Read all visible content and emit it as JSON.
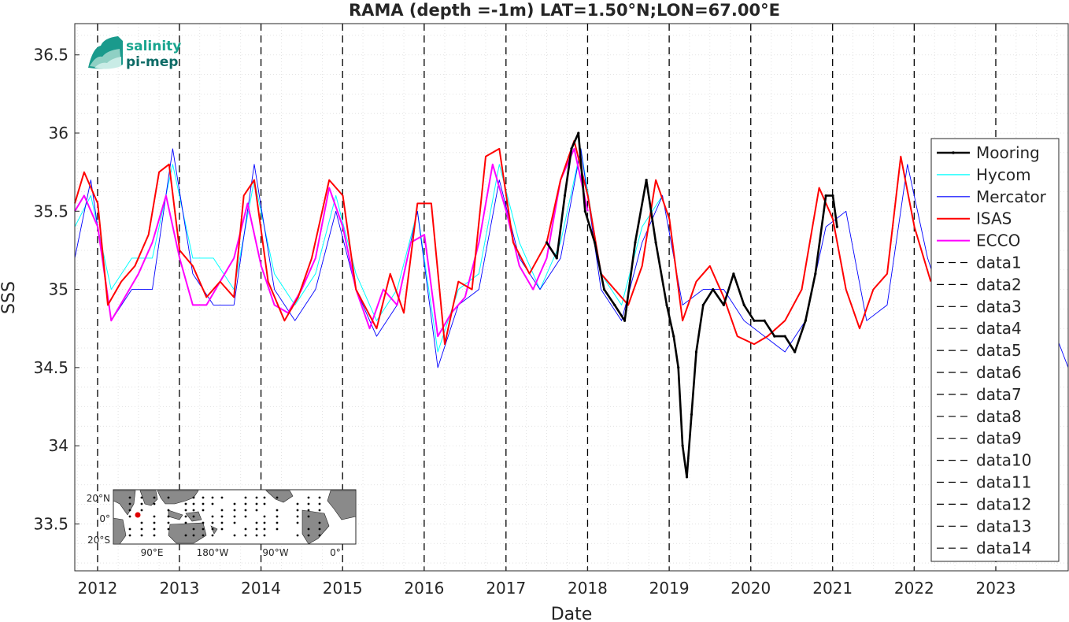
{
  "chart_data": {
    "type": "line",
    "title": "RAMA (depth =-1m) LAT=1.50°N;LON=67.00°E",
    "xlabel": "Date",
    "ylabel": "SSS",
    "xlim": [
      "2011-09-20",
      "2023-11-20"
    ],
    "ylim": [
      33.2,
      36.7
    ],
    "grid": true,
    "legend_position": "right",
    "x_ticks": [
      "2012",
      "2013",
      "2014",
      "2015",
      "2016",
      "2017",
      "2018",
      "2019",
      "2020",
      "2021",
      "2022",
      "2023"
    ],
    "y_ticks": [
      33.5,
      34,
      34.5,
      35,
      35.5,
      36,
      36.5
    ],
    "series": [
      {
        "name": "Mooring",
        "color": "#000000",
        "style": "solid-marker",
        "x": [
          "2017-07-01",
          "2017-08-15",
          "2017-09-20",
          "2017-10-20",
          "2017-11-20",
          "2017-12-20",
          "2018-02-01",
          "2018-03-15",
          "2018-05-01",
          "2018-06-15",
          "2018-08-01",
          "2018-09-20",
          "2018-11-01",
          "2018-12-20",
          "2019-01-20",
          "2019-02-10",
          "2019-03-01",
          "2019-03-20",
          "2019-04-10",
          "2019-05-01",
          "2019-06-01",
          "2019-07-15",
          "2019-09-01",
          "2019-10-15",
          "2019-12-01",
          "2020-01-15",
          "2020-03-01",
          "2020-04-15",
          "2020-06-01",
          "2020-07-15",
          "2020-09-01",
          "2020-10-15",
          "2020-12-01",
          "2021-01-01",
          "2021-01-20"
        ],
        "y": [
          35.3,
          35.2,
          35.6,
          35.9,
          36.0,
          35.5,
          35.3,
          35.0,
          34.9,
          34.8,
          35.3,
          35.7,
          35.3,
          34.9,
          34.7,
          34.5,
          34.0,
          33.8,
          34.2,
          34.6,
          34.9,
          35.0,
          34.9,
          35.1,
          34.9,
          34.8,
          34.8,
          34.7,
          34.7,
          34.6,
          34.8,
          35.1,
          35.6,
          35.6,
          35.4
        ]
      },
      {
        "name": "Hycom",
        "color": "#00ffff",
        "style": "solid",
        "x": [
          "2011-09-20",
          "2011-12-01",
          "2012-03-01",
          "2012-06-01",
          "2012-09-01",
          "2012-12-01",
          "2013-03-01",
          "2013-06-01",
          "2013-09-01",
          "2013-12-01",
          "2014-03-01",
          "2014-06-01",
          "2014-09-01",
          "2014-12-01",
          "2015-03-01",
          "2015-06-01",
          "2015-09-01",
          "2015-12-01",
          "2016-03-01",
          "2016-06-01",
          "2016-09-01",
          "2016-12-01",
          "2017-03-01",
          "2017-06-01",
          "2017-09-01",
          "2017-12-01",
          "2018-03-01",
          "2018-06-01",
          "2018-09-01",
          "2018-12-01"
        ],
        "y": [
          35.4,
          35.6,
          35.0,
          35.2,
          35.2,
          35.8,
          35.2,
          35.2,
          35.0,
          35.7,
          35.1,
          34.9,
          35.1,
          35.6,
          35.1,
          34.8,
          35.0,
          35.5,
          34.6,
          35.0,
          35.1,
          35.8,
          35.3,
          35.0,
          35.3,
          35.9,
          35.1,
          34.9,
          35.4,
          35.6
        ]
      },
      {
        "name": "Mercator",
        "color": "#0000ff",
        "style": "solid",
        "x": [
          "2011-09-20",
          "2011-12-01",
          "2012-03-01",
          "2012-06-01",
          "2012-09-01",
          "2012-12-01",
          "2013-03-01",
          "2013-06-01",
          "2013-09-01",
          "2013-12-01",
          "2014-03-01",
          "2014-06-01",
          "2014-09-01",
          "2014-12-01",
          "2015-03-01",
          "2015-06-01",
          "2015-09-01",
          "2015-12-01",
          "2016-03-01",
          "2016-06-01",
          "2016-09-01",
          "2016-12-01",
          "2017-03-01",
          "2017-06-01",
          "2017-09-01",
          "2017-12-01",
          "2018-03-01",
          "2018-06-01",
          "2018-09-01",
          "2018-12-01",
          "2019-03-01",
          "2019-06-01",
          "2019-09-01",
          "2019-12-01",
          "2020-03-01",
          "2020-06-01",
          "2020-09-01",
          "2020-12-01",
          "2021-03-01",
          "2021-06-01",
          "2021-09-01",
          "2021-12-01",
          "2022-03-01",
          "2022-06-01",
          "2022-09-01",
          "2022-12-01",
          "2023-03-01",
          "2023-06-01",
          "2023-09-01",
          "2023-11-20"
        ],
        "y": [
          35.2,
          35.7,
          34.8,
          35.0,
          35.0,
          35.9,
          35.1,
          34.9,
          34.9,
          35.8,
          35.0,
          34.8,
          35.0,
          35.5,
          35.0,
          34.7,
          34.9,
          35.5,
          34.5,
          34.9,
          35.0,
          35.7,
          35.2,
          35.0,
          35.2,
          35.9,
          35.0,
          34.8,
          35.3,
          35.6,
          34.9,
          35.0,
          35.0,
          34.8,
          34.7,
          34.6,
          34.8,
          35.4,
          35.5,
          34.8,
          34.9,
          35.8,
          35.2,
          34.8,
          34.9,
          35.7,
          35.9,
          35.0,
          34.8,
          34.5
        ]
      },
      {
        "name": "ISAS",
        "color": "#ff0000",
        "style": "solid",
        "x": [
          "2011-09-20",
          "2011-11-01",
          "2012-01-01",
          "2012-02-15",
          "2012-04-15",
          "2012-06-15",
          "2012-08-15",
          "2012-10-01",
          "2012-11-15",
          "2013-01-01",
          "2013-03-01",
          "2013-05-01",
          "2013-07-01",
          "2013-09-01",
          "2013-10-15",
          "2013-12-01",
          "2014-02-01",
          "2014-04-15",
          "2014-06-15",
          "2014-08-15",
          "2014-11-01",
          "2015-01-01",
          "2015-03-01",
          "2015-06-01",
          "2015-08-01",
          "2015-10-01",
          "2015-12-01",
          "2016-02-01",
          "2016-04-01",
          "2016-06-01",
          "2016-08-01",
          "2016-10-01",
          "2016-12-01",
          "2017-02-01",
          "2017-04-15",
          "2017-07-01",
          "2017-09-01",
          "2017-11-01",
          "2018-01-01",
          "2018-03-01",
          "2018-05-01",
          "2018-07-01",
          "2018-09-01",
          "2018-11-01",
          "2019-01-01",
          "2019-03-01",
          "2019-05-01",
          "2019-07-01",
          "2019-09-01",
          "2019-11-01",
          "2020-01-15",
          "2020-03-15",
          "2020-06-01",
          "2020-08-15",
          "2020-11-01",
          "2021-01-01",
          "2021-03-01",
          "2021-05-01",
          "2021-07-01",
          "2021-09-01",
          "2021-11-01",
          "2022-01-01",
          "2022-03-15"
        ],
        "y": [
          35.55,
          35.75,
          35.55,
          34.9,
          35.05,
          35.15,
          35.35,
          35.75,
          35.8,
          35.25,
          35.15,
          34.95,
          35.05,
          34.95,
          35.6,
          35.7,
          35.05,
          34.8,
          34.95,
          35.2,
          35.7,
          35.6,
          35.0,
          34.75,
          35.1,
          34.85,
          35.55,
          35.55,
          34.65,
          35.05,
          35.0,
          35.85,
          35.9,
          35.3,
          35.1,
          35.3,
          35.7,
          35.95,
          35.6,
          35.1,
          35.0,
          34.9,
          35.15,
          35.7,
          35.45,
          34.8,
          35.05,
          35.15,
          34.95,
          34.7,
          34.65,
          34.7,
          34.8,
          35.0,
          35.65,
          35.45,
          35.0,
          34.75,
          35.0,
          35.1,
          35.85,
          35.4,
          35.05
        ]
      },
      {
        "name": "ECCO",
        "color": "#ff00ff",
        "style": "solid",
        "x": [
          "2011-09-20",
          "2011-11-01",
          "2012-01-01",
          "2012-03-01",
          "2012-05-01",
          "2012-07-01",
          "2012-09-01",
          "2012-11-01",
          "2013-01-01",
          "2013-03-01",
          "2013-05-01",
          "2013-07-01",
          "2013-09-01",
          "2013-11-01",
          "2014-01-01",
          "2014-03-01",
          "2014-05-01",
          "2014-07-01",
          "2014-09-01",
          "2014-11-01",
          "2015-01-01",
          "2015-03-01",
          "2015-05-01",
          "2015-07-01",
          "2015-09-01",
          "2015-11-01",
          "2016-01-01",
          "2016-03-01",
          "2016-05-01",
          "2016-07-01",
          "2016-09-01",
          "2016-11-01",
          "2017-01-01",
          "2017-03-01",
          "2017-05-01",
          "2017-07-01",
          "2017-09-01",
          "2017-11-01",
          "2018-01-01"
        ],
        "y": [
          35.5,
          35.6,
          35.4,
          34.8,
          34.95,
          35.1,
          35.3,
          35.6,
          35.2,
          34.9,
          34.9,
          35.05,
          35.2,
          35.55,
          35.15,
          34.9,
          34.85,
          35.0,
          35.2,
          35.65,
          35.4,
          35.0,
          34.75,
          35.0,
          34.9,
          35.3,
          35.35,
          34.7,
          34.85,
          34.95,
          35.3,
          35.8,
          35.5,
          35.15,
          35.0,
          35.2,
          35.7,
          35.9,
          35.5
        ]
      }
    ],
    "vlines": [
      "2011-12-31",
      "2012-12-31",
      "2013-12-31",
      "2014-12-31",
      "2015-12-31",
      "2016-12-31",
      "2017-12-31",
      "2018-12-31",
      "2019-12-31",
      "2020-12-31",
      "2021-12-31",
      "2022-12-31"
    ],
    "legend_entries": [
      "Mooring",
      "Hycom",
      "Mercator",
      "ISAS",
      "ECCO",
      "data1",
      "data2",
      "data3",
      "data4",
      "data5",
      "data6",
      "data7",
      "data8",
      "data9",
      "data10",
      "data11",
      "data12",
      "data13",
      "data14"
    ]
  },
  "logo": {
    "line1": "salinity",
    "line2": "pi-mep"
  },
  "inset_map": {
    "lat_labels": [
      "20°N",
      "0°",
      "20°S"
    ],
    "lon_labels": [
      "90°E",
      "180°W",
      "90°W",
      "0°"
    ],
    "site_marker_color": "#e00000"
  }
}
